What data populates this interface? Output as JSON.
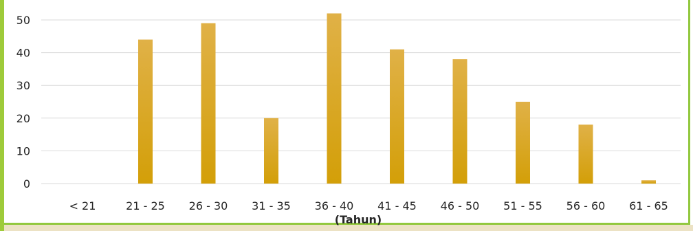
{
  "chart_data": {
    "type": "bar",
    "categories": [
      "< 21",
      "21 - 25",
      "26 - 30",
      "31 - 35",
      "36 - 40",
      "41 - 45",
      "46 - 50",
      "51 - 55",
      "56 - 60",
      "61 - 65"
    ],
    "values": [
      0,
      44,
      49,
      20,
      52,
      41,
      38,
      25,
      18,
      1
    ],
    "title": "",
    "xlabel": "(Tahun)",
    "ylabel": "",
    "ylim": [
      0,
      55
    ],
    "yticks": [
      0,
      10,
      20,
      30,
      40,
      50
    ],
    "grid": true,
    "legend": "none",
    "colors": {
      "bar_top": "#e0b147",
      "bar_bottom": "#d39f08",
      "gridline": "#d9d9d9",
      "frame": "#92c83e"
    }
  }
}
